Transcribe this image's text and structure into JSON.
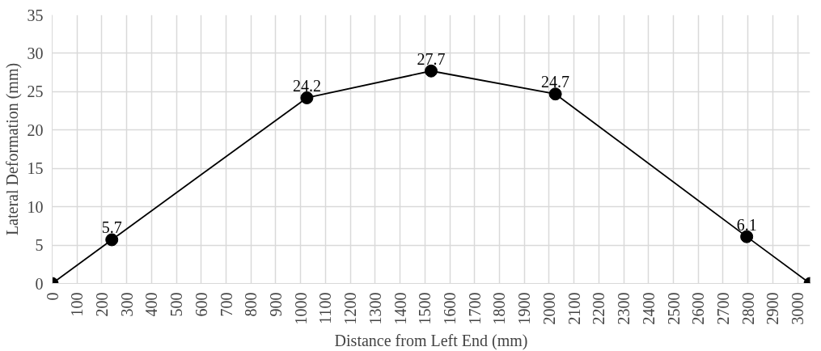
{
  "chart_data": {
    "type": "line",
    "xlabel": "Distance from Left End (mm)",
    "ylabel": "Lateral Deformation (mm)",
    "x": [
      0,
      240,
      1025,
      1525,
      2025,
      2795,
      3050
    ],
    "series": [
      {
        "color": "#000000",
        "values": [
          0,
          5.7,
          24.2,
          27.7,
          24.7,
          6.1,
          0
        ],
        "value_labels": [
          null,
          "5.7",
          "24.2",
          "27.7",
          "24.7",
          "6.1",
          null
        ]
      }
    ],
    "xlim": [
      0,
      3050
    ],
    "xticks": [
      0,
      100,
      200,
      300,
      400,
      500,
      600,
      700,
      800,
      900,
      1000,
      1100,
      1200,
      1300,
      1400,
      1500,
      1600,
      1700,
      1800,
      1900,
      2000,
      2100,
      2200,
      2300,
      2400,
      2500,
      2600,
      2700,
      2800,
      2900,
      3000
    ],
    "ylim": [
      0,
      35
    ],
    "yticks": [
      0,
      5,
      10,
      15,
      20,
      25,
      30,
      35
    ],
    "grid": true,
    "marker": "circle",
    "line_style": "solid"
  }
}
